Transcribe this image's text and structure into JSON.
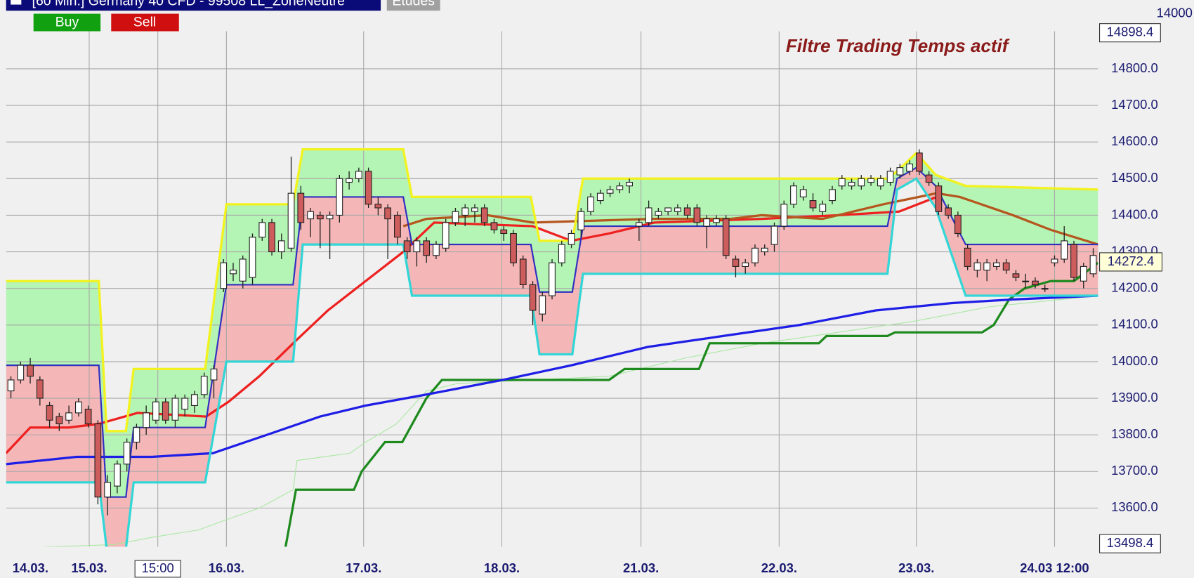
{
  "header": {
    "title": "[60 Min.] Germany 40 CFD - 99508 LL_ZoneNeutre",
    "tab": "Etudes",
    "buttons": [
      "Buy",
      "Sell"
    ]
  },
  "chart_data": {
    "type": "candlestick",
    "annotation": "Filtre Trading Temps actif",
    "corner_label": "14000",
    "ylim": [
      13498.4,
      14898.4
    ],
    "yticks": [
      {
        "value": 13600,
        "label": "13600.0"
      },
      {
        "value": 13700,
        "label": "13700.0"
      },
      {
        "value": 13800,
        "label": "13800.0"
      },
      {
        "value": 13900,
        "label": "13900.0"
      },
      {
        "value": 14000,
        "label": "14000.0"
      },
      {
        "value": 14100,
        "label": "14100.0"
      },
      {
        "value": 14200,
        "label": "14200.0"
      },
      {
        "value": 14300,
        "label": "14300.0"
      },
      {
        "value": 14400,
        "label": "14400.0"
      },
      {
        "value": 14500,
        "label": "14500.0"
      },
      {
        "value": 14600,
        "label": "14600.0"
      },
      {
        "value": 14700,
        "label": "14700.0"
      },
      {
        "value": 14800,
        "label": "14800.0"
      }
    ],
    "xlim": [
      -0.5,
      112.5
    ],
    "xticks": [
      {
        "value": -6.1,
        "label": "14.03."
      },
      {
        "value": 8.1,
        "label": "15.03."
      },
      {
        "value": 22.3,
        "label": "16.03."
      },
      {
        "value": 36.5,
        "label": "17.03."
      },
      {
        "value": 50.8,
        "label": "18.03."
      },
      {
        "value": 65.2,
        "label": "21.03."
      },
      {
        "value": 79.5,
        "label": "22.03."
      },
      {
        "value": 93.7,
        "label": "23.03."
      },
      {
        "value": 108.0,
        "label": "24.03 12:00"
      }
    ],
    "grid": true,
    "cursor": {
      "x": 15.2,
      "label": "15:00"
    },
    "last_price": 14272.4,
    "up_color": "#ffffff",
    "down_color": "#cd5c5c",
    "candles": [
      [
        13920,
        13960,
        13900,
        13950
      ],
      [
        13950,
        14000,
        13940,
        13990
      ],
      [
        13990,
        14010,
        13940,
        13960
      ],
      [
        13950,
        13960,
        13880,
        13900
      ],
      [
        13880,
        13890,
        13820,
        13840
      ],
      [
        13850,
        13860,
        13810,
        13830
      ],
      [
        13840,
        13880,
        13830,
        13860
      ],
      [
        13860,
        13900,
        13850,
        13890
      ],
      [
        13870,
        13880,
        13820,
        13830
      ],
      [
        13830,
        13840,
        13610,
        13630
      ],
      [
        13630,
        13690,
        13580,
        13670
      ],
      [
        13660,
        13730,
        13640,
        13720
      ],
      [
        13720,
        13790,
        13700,
        13780
      ],
      [
        13780,
        13830,
        13760,
        13820
      ],
      [
        13820,
        13880,
        13800,
        13860
      ],
      [
        13840,
        13900,
        13830,
        13890
      ],
      [
        13890,
        13900,
        13830,
        13840
      ],
      [
        13840,
        13910,
        13820,
        13900
      ],
      [
        13870,
        13910,
        13850,
        13900
      ],
      [
        13880,
        13920,
        13860,
        13910
      ],
      [
        13910,
        13970,
        13900,
        13960
      ],
      [
        13950,
        13990,
        13900,
        13980
      ],
      [
        14200,
        14280,
        14190,
        14270
      ],
      [
        14240,
        14270,
        14220,
        14250
      ],
      [
        14220,
        14290,
        14200,
        14280
      ],
      [
        14230,
        14350,
        14210,
        14340
      ],
      [
        14340,
        14390,
        14330,
        14380
      ],
      [
        14380,
        14390,
        14290,
        14300
      ],
      [
        14300,
        14350,
        14280,
        14330
      ],
      [
        14310,
        14560,
        14300,
        14460
      ],
      [
        14460,
        14480,
        14360,
        14380
      ],
      [
        14390,
        14420,
        14340,
        14410
      ],
      [
        14400,
        14410,
        14310,
        14390
      ],
      [
        14390,
        14410,
        14280,
        14400
      ],
      [
        14400,
        14510,
        14380,
        14500
      ],
      [
        14490,
        14520,
        14470,
        14500
      ],
      [
        14500,
        14530,
        14490,
        14520
      ],
      [
        14520,
        14530,
        14420,
        14430
      ],
      [
        14430,
        14450,
        14400,
        14420
      ],
      [
        14420,
        14430,
        14280,
        14390
      ],
      [
        14400,
        14410,
        14320,
        14340
      ],
      [
        14330,
        14340,
        14280,
        14300
      ],
      [
        14300,
        14340,
        14260,
        14330
      ],
      [
        14330,
        14340,
        14270,
        14290
      ],
      [
        14290,
        14330,
        14280,
        14320
      ],
      [
        14310,
        14390,
        14300,
        14380
      ],
      [
        14380,
        14420,
        14370,
        14410
      ],
      [
        14400,
        14430,
        14370,
        14420
      ],
      [
        14410,
        14430,
        14380,
        14420
      ],
      [
        14420,
        14430,
        14370,
        14380
      ],
      [
        14380,
        14390,
        14350,
        14360
      ],
      [
        14360,
        14370,
        14330,
        14350
      ],
      [
        14350,
        14360,
        14260,
        14270
      ],
      [
        14280,
        14290,
        14200,
        14210
      ],
      [
        14210,
        14220,
        14100,
        14140
      ],
      [
        14130,
        14190,
        14110,
        14180
      ],
      [
        14180,
        14280,
        14170,
        14270
      ],
      [
        14270,
        14330,
        14260,
        14320
      ],
      [
        14320,
        14360,
        14310,
        14350
      ],
      [
        14360,
        14420,
        14340,
        14410
      ],
      [
        14410,
        14460,
        14400,
        14450
      ],
      [
        14440,
        14470,
        14430,
        14460
      ],
      [
        14460,
        14480,
        14450,
        14470
      ],
      [
        14470,
        14490,
        14460,
        14480
      ],
      [
        14480,
        14500,
        14460,
        14490
      ],
      [
        14370,
        14390,
        14330,
        14380
      ],
      [
        14380,
        14440,
        14370,
        14420
      ],
      [
        14400,
        14420,
        14390,
        14410
      ],
      [
        14410,
        14420,
        14400,
        14420
      ],
      [
        14410,
        14430,
        14400,
        14420
      ],
      [
        14420,
        14430,
        14390,
        14400
      ],
      [
        14420,
        14430,
        14370,
        14380
      ],
      [
        14370,
        14400,
        14310,
        14390
      ],
      [
        14380,
        14400,
        14370,
        14390
      ],
      [
        14390,
        14400,
        14280,
        14290
      ],
      [
        14280,
        14290,
        14230,
        14260
      ],
      [
        14260,
        14280,
        14240,
        14270
      ],
      [
        14270,
        14320,
        14260,
        14310
      ],
      [
        14300,
        14320,
        14290,
        14310
      ],
      [
        14320,
        14380,
        14300,
        14370
      ],
      [
        14370,
        14440,
        14360,
        14430
      ],
      [
        14430,
        14490,
        14420,
        14480
      ],
      [
        14450,
        14480,
        14440,
        14470
      ],
      [
        14440,
        14460,
        14410,
        14420
      ],
      [
        14410,
        14440,
        14400,
        14430
      ],
      [
        14440,
        14480,
        14430,
        14470
      ],
      [
        14480,
        14510,
        14470,
        14500
      ],
      [
        14480,
        14500,
        14470,
        14490
      ],
      [
        14480,
        14510,
        14470,
        14500
      ],
      [
        14490,
        14510,
        14480,
        14500
      ],
      [
        14480,
        14510,
        14470,
        14500
      ],
      [
        14490,
        14530,
        14480,
        14520
      ],
      [
        14510,
        14540,
        14500,
        14530
      ],
      [
        14520,
        14550,
        14510,
        14540
      ],
      [
        14570,
        14580,
        14510,
        14520
      ],
      [
        14510,
        14520,
        14480,
        14490
      ],
      [
        14480,
        14490,
        14400,
        14410
      ],
      [
        14420,
        14430,
        14390,
        14400
      ],
      [
        14400,
        14410,
        14340,
        14350
      ],
      [
        14310,
        14320,
        14250,
        14260
      ],
      [
        14250,
        14280,
        14230,
        14270
      ],
      [
        14250,
        14280,
        14220,
        14270
      ],
      [
        14260,
        14280,
        14250,
        14270
      ],
      [
        14270,
        14280,
        14240,
        14250
      ],
      [
        14240,
        14250,
        14220,
        14230
      ],
      [
        14220,
        14240,
        14200,
        14220
      ],
      [
        14220,
        14230,
        14200,
        14210
      ],
      [
        14200,
        14210,
        14190,
        14200
      ],
      [
        14270,
        14290,
        14260,
        14280
      ],
      [
        14280,
        14370,
        14270,
        14330
      ],
      [
        14320,
        14330,
        14220,
        14230
      ],
      [
        14220,
        14270,
        14200,
        14260
      ],
      [
        14240,
        14310,
        14230,
        14290
      ]
    ],
    "channel": {
      "x": [
        -0.5,
        9.1,
        9.9,
        11.9,
        12.7,
        20.1,
        22.3,
        29.2,
        30.2,
        40.6,
        41.5,
        53.8,
        54.7,
        58.1,
        59.2,
        90.7,
        91.7,
        93.7,
        95.7,
        98.8,
        112.5
      ],
      "upper": {
        "color": "#f2f21e",
        "values": [
          14220,
          14220,
          13810,
          13810,
          13980,
          13980,
          14430,
          14430,
          14580,
          14580,
          14450,
          14450,
          14330,
          14330,
          14500,
          14500,
          14520,
          14570,
          14510,
          14480,
          14470
        ]
      },
      "middle": {
        "color": "#3030c0",
        "values": [
          13990,
          13990,
          13630,
          13630,
          13820,
          13820,
          14210,
          14210,
          14450,
          14450,
          14320,
          14320,
          14190,
          14190,
          14370,
          14370,
          14500,
          14530,
          14480,
          14320,
          14320
        ]
      },
      "lower": {
        "color": "#33d6d6",
        "values": [
          13670,
          13670,
          13490,
          13490,
          13670,
          13670,
          14000,
          14000,
          14320,
          14320,
          14180,
          14180,
          14020,
          14020,
          14240,
          14240,
          14470,
          14500,
          14420,
          14180,
          14180
        ]
      },
      "upper_fill": "#b4f4b4",
      "lower_fill": "#f4b6b6"
    },
    "lines": [
      {
        "color": "#a8e8a0",
        "width": 1,
        "x": [
          -0.5,
          10.7,
          14.6,
          19.4,
          22.5,
          25.7,
          29.2,
          29.6,
          35.1,
          36.7,
          39.9,
          43.0,
          46.2,
          54.0,
          61.9,
          69.8,
          77.7,
          85.6,
          93.4,
          101.3,
          112.5
        ],
        "values": [
          13490,
          13500,
          13520,
          13540,
          13570,
          13600,
          13650,
          13730,
          13750,
          13780,
          13830,
          13920,
          13940,
          13950,
          13960,
          14010,
          14050,
          14080,
          14110,
          14150,
          14180
        ]
      },
      {
        "color": "#1e8a1e",
        "width": 3,
        "x": [
          28.4,
          29.5,
          35.5,
          36.3,
          38.7,
          40.5,
          43.0,
          44.6,
          61.9,
          63.5,
          71.2,
          72.3,
          83.6,
          84.4,
          90.7,
          91.5,
          100.5,
          101.7,
          103.3,
          104.9,
          107.6,
          110.0,
          112.5
        ],
        "values": [
          13490,
          13650,
          13650,
          13700,
          13780,
          13780,
          13900,
          13950,
          13950,
          13980,
          13980,
          14050,
          14050,
          14070,
          14070,
          14080,
          14080,
          14100,
          14170,
          14200,
          14220,
          14220,
          14270
        ]
      },
      {
        "color": "#1e1ee6",
        "width": 3,
        "x": [
          -0.5,
          6.8,
          14.6,
          20.9,
          26.5,
          32.0,
          36.7,
          43.0,
          50.9,
          58.0,
          65.9,
          73.7,
          81.6,
          89.5,
          97.4,
          103.7,
          112.5
        ],
        "values": [
          13720,
          13740,
          13740,
          13750,
          13800,
          13850,
          13880,
          13910,
          13950,
          13990,
          14040,
          14070,
          14100,
          14140,
          14160,
          14170,
          14180
        ]
      },
      {
        "color": "#ee2020",
        "width": 3,
        "x": [
          -0.5,
          2.0,
          6.0,
          9.1,
          13.1,
          20.2,
          22.5,
          25.7,
          29.6,
          32.8,
          36.7,
          40.6,
          43.8,
          54.0,
          58.0,
          61.9,
          66.6,
          77.7,
          85.6,
          91.9,
          95.8
        ],
        "values": [
          13750,
          13820,
          13820,
          13830,
          13860,
          13850,
          13890,
          13960,
          14060,
          14140,
          14220,
          14300,
          14380,
          14370,
          14330,
          14350,
          14380,
          14390,
          14400,
          14410,
          14450
        ]
      },
      {
        "color": "#b5561e",
        "width": 3,
        "x": [
          40.6,
          43.0,
          49.3,
          54.0,
          66.6,
          74.5,
          77.7,
          84.0,
          90.3,
          95.8,
          98.2,
          103.7,
          107.6,
          112.5
        ],
        "values": [
          14370,
          14390,
          14400,
          14380,
          14390,
          14390,
          14400,
          14390,
          14430,
          14460,
          14450,
          14400,
          14360,
          14320
        ]
      }
    ]
  }
}
